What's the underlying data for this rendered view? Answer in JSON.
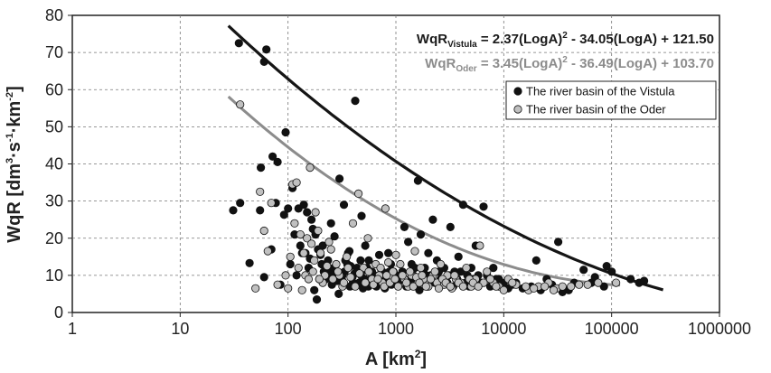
{
  "chart_data": {
    "type": "scatter",
    "xscale": "log",
    "xlim": [
      1,
      1000000
    ],
    "ylim": [
      0,
      80
    ],
    "grid": true,
    "legend_position": "top-right",
    "xlabel": {
      "text": "A [km",
      "sup": "2",
      "close": "]"
    },
    "ylabel": {
      "text": "WqR [dm",
      "sup1": "3",
      "mid1": "·s",
      "sup2": "-1",
      "mid2": "·km",
      "sup3": "-2",
      "close": "]"
    },
    "x_ticks": [
      1,
      10,
      100,
      1000,
      10000,
      100000,
      1000000
    ],
    "x_tick_labels": [
      "1",
      "10",
      "100",
      "1000",
      "10000",
      "100000",
      "1000000"
    ],
    "y_ticks": [
      0,
      10,
      20,
      30,
      40,
      50,
      60,
      70,
      80
    ],
    "y_tick_labels": [
      "0",
      "10",
      "20",
      "30",
      "40",
      "50",
      "60",
      "70",
      "80"
    ],
    "equations": [
      {
        "prefix": "WqR",
        "sub": "Vistula",
        "body1": " = 2.37(LogA)",
        "sup": "2",
        "body2": " - 34.05(LogA) + 121.50",
        "color": "#1a1a1a"
      },
      {
        "prefix": "WqR",
        "sub": "Oder",
        "body1": " = 3.45(LogA)",
        "sup": "2",
        "body2": " - 36.49(LogA) + 103.70",
        "color": "#8c8c8c"
      }
    ],
    "series": [
      {
        "name": "The river basin of the Vistula",
        "marker_color": "#111111",
        "trend": {
          "a": 2.37,
          "b": -34.05,
          "c": 121.5,
          "x_range": [
            28,
            300000
          ],
          "color": "#151515"
        },
        "points": [
          [
            35,
            72.5
          ],
          [
            60,
            67.5
          ],
          [
            63,
            70.8
          ],
          [
            56,
            39
          ],
          [
            55,
            27.5
          ],
          [
            31,
            27.5
          ],
          [
            36,
            29.5
          ],
          [
            44,
            13.3
          ],
          [
            77,
            29.5
          ],
          [
            72,
            42
          ],
          [
            80,
            40.5
          ],
          [
            95,
            48.5
          ],
          [
            92,
            26.3
          ],
          [
            100,
            28
          ],
          [
            110,
            33.5
          ],
          [
            125,
            28
          ],
          [
            140,
            29
          ],
          [
            150,
            27
          ],
          [
            165,
            25
          ],
          [
            170,
            22.5
          ],
          [
            180,
            21
          ],
          [
            190,
            17
          ],
          [
            200,
            15.5
          ],
          [
            210,
            18
          ],
          [
            230,
            12
          ],
          [
            250,
            24
          ],
          [
            270,
            20.5
          ],
          [
            300,
            36
          ],
          [
            330,
            29
          ],
          [
            360,
            16
          ],
          [
            380,
            12.5
          ],
          [
            420,
            57
          ],
          [
            480,
            26
          ],
          [
            520,
            18
          ],
          [
            560,
            14
          ],
          [
            600,
            10
          ],
          [
            650,
            8
          ],
          [
            700,
            15.5
          ],
          [
            750,
            11
          ],
          [
            800,
            9
          ],
          [
            850,
            16
          ],
          [
            900,
            13
          ],
          [
            950,
            11
          ],
          [
            1000,
            10
          ],
          [
            1100,
            9
          ],
          [
            1200,
            23
          ],
          [
            1300,
            19
          ],
          [
            1400,
            13
          ],
          [
            1500,
            12
          ],
          [
            1600,
            35.5
          ],
          [
            1700,
            21
          ],
          [
            1800,
            11
          ],
          [
            1900,
            10
          ],
          [
            2000,
            16
          ],
          [
            2200,
            25
          ],
          [
            2400,
            14
          ],
          [
            2600,
            9
          ],
          [
            2800,
            12
          ],
          [
            3000,
            8
          ],
          [
            3200,
            23
          ],
          [
            3500,
            11
          ],
          [
            3800,
            15
          ],
          [
            4200,
            29
          ],
          [
            4600,
            10
          ],
          [
            5000,
            12
          ],
          [
            5500,
            18
          ],
          [
            6000,
            8
          ],
          [
            6500,
            28.5
          ],
          [
            7000,
            10
          ],
          [
            8000,
            12
          ],
          [
            9000,
            9
          ],
          [
            10000,
            8
          ],
          [
            12000,
            7.5
          ],
          [
            15000,
            6.5
          ],
          [
            20000,
            14
          ],
          [
            25000,
            9
          ],
          [
            32000,
            19
          ],
          [
            40000,
            6
          ],
          [
            55000,
            11.5
          ],
          [
            70000,
            9.5
          ],
          [
            90000,
            12.5
          ],
          [
            100000,
            11
          ],
          [
            150000,
            9
          ],
          [
            180000,
            8
          ],
          [
            200000,
            8.5
          ],
          [
            120,
            10
          ],
          [
            135,
            16
          ],
          [
            155,
            12
          ],
          [
            175,
            6
          ],
          [
            195,
            9
          ],
          [
            215,
            11
          ],
          [
            235,
            14
          ],
          [
            255,
            7.5
          ],
          [
            275,
            10
          ],
          [
            295,
            5
          ],
          [
            315,
            9
          ],
          [
            335,
            11
          ],
          [
            355,
            13
          ],
          [
            375,
            7
          ],
          [
            395,
            9.5
          ],
          [
            415,
            10.5
          ],
          [
            435,
            12
          ],
          [
            455,
            8
          ],
          [
            475,
            10
          ],
          [
            495,
            6.5
          ],
          [
            515,
            9
          ],
          [
            535,
            11.5
          ],
          [
            555,
            7
          ],
          [
            575,
            8.5
          ],
          [
            600,
            11
          ],
          [
            630,
            9
          ],
          [
            660,
            7
          ],
          [
            690,
            10
          ],
          [
            720,
            12
          ],
          [
            760,
            8
          ],
          [
            790,
            6.5
          ],
          [
            830,
            9.5
          ],
          [
            870,
            11
          ],
          [
            910,
            7.5
          ],
          [
            960,
            10
          ],
          [
            1050,
            8
          ],
          [
            1150,
            11
          ],
          [
            1250,
            7
          ],
          [
            1350,
            9
          ],
          [
            1450,
            10
          ],
          [
            1550,
            8
          ],
          [
            1650,
            6
          ],
          [
            1750,
            9
          ],
          [
            1850,
            12
          ],
          [
            1950,
            7
          ],
          [
            2100,
            10
          ],
          [
            2300,
            8
          ],
          [
            2500,
            11
          ],
          [
            2700,
            7.5
          ],
          [
            2900,
            9
          ],
          [
            3100,
            10
          ],
          [
            3400,
            7
          ],
          [
            3700,
            9
          ],
          [
            4000,
            11
          ],
          [
            4400,
            8
          ],
          [
            4800,
            7
          ],
          [
            5200,
            9
          ],
          [
            5800,
            10
          ],
          [
            6200,
            8
          ],
          [
            7500,
            7
          ],
          [
            8500,
            9
          ],
          [
            11000,
            6.5
          ],
          [
            13000,
            8
          ],
          [
            18000,
            7
          ],
          [
            22000,
            6
          ],
          [
            28000,
            7.5
          ],
          [
            35000,
            5.5
          ],
          [
            45000,
            8
          ],
          [
            65000,
            8
          ],
          [
            85000,
            7
          ],
          [
            60,
            9.5
          ],
          [
            70,
            17
          ],
          [
            85,
            7.5
          ],
          [
            105,
            13
          ],
          [
            115,
            21
          ],
          [
            130,
            18
          ],
          [
            145,
            16
          ],
          [
            160,
            14.5
          ],
          [
            185,
            3.5
          ],
          [
            205,
            13
          ],
          [
            225,
            9
          ],
          [
            245,
            10.5
          ],
          [
            265,
            12
          ],
          [
            285,
            8.5
          ],
          [
            320,
            10
          ],
          [
            340,
            14
          ],
          [
            370,
            16.5
          ],
          [
            400,
            8
          ],
          [
            440,
            11
          ],
          [
            470,
            14
          ],
          [
            500,
            9
          ],
          [
            540,
            12
          ],
          [
            580,
            7.5
          ],
          [
            620,
            9.5
          ]
        ]
      },
      {
        "name": "The river basin of the Oder",
        "marker_color": "#c0c0c0",
        "trend": {
          "a": 3.45,
          "b": -36.49,
          "c": 103.7,
          "x_range": [
            28,
            120000
          ],
          "color": "#8c8c8c"
        },
        "points": [
          [
            36,
            56
          ],
          [
            50,
            6.5
          ],
          [
            55,
            32.5
          ],
          [
            60,
            22
          ],
          [
            65,
            16.5
          ],
          [
            70,
            29.5
          ],
          [
            80,
            7.5
          ],
          [
            100,
            6.5
          ],
          [
            110,
            34.5
          ],
          [
            115,
            24
          ],
          [
            120,
            35
          ],
          [
            130,
            21
          ],
          [
            145,
            10
          ],
          [
            160,
            39
          ],
          [
            180,
            27
          ],
          [
            190,
            22
          ],
          [
            200,
            16
          ],
          [
            220,
            10
          ],
          [
            250,
            17
          ],
          [
            280,
            13
          ],
          [
            300,
            10
          ],
          [
            320,
            7
          ],
          [
            350,
            15
          ],
          [
            400,
            24
          ],
          [
            450,
            32
          ],
          [
            500,
            12
          ],
          [
            550,
            20
          ],
          [
            600,
            9
          ],
          [
            650,
            13
          ],
          [
            700,
            10
          ],
          [
            750,
            8
          ],
          [
            800,
            28
          ],
          [
            850,
            13.5
          ],
          [
            900,
            10
          ],
          [
            1000,
            15.5
          ],
          [
            1100,
            13
          ],
          [
            1200,
            9
          ],
          [
            1300,
            7
          ],
          [
            1400,
            10
          ],
          [
            1500,
            16.5
          ],
          [
            1600,
            8
          ],
          [
            1700,
            12
          ],
          [
            1800,
            9
          ],
          [
            2000,
            7
          ],
          [
            2200,
            10
          ],
          [
            2400,
            8
          ],
          [
            2600,
            13
          ],
          [
            2800,
            7.5
          ],
          [
            3000,
            10
          ],
          [
            3300,
            6.5
          ],
          [
            3600,
            9
          ],
          [
            4000,
            8
          ],
          [
            4500,
            12
          ],
          [
            5000,
            7
          ],
          [
            5500,
            9
          ],
          [
            6000,
            18
          ],
          [
            6500,
            8
          ],
          [
            7000,
            11
          ],
          [
            8000,
            8
          ],
          [
            9000,
            7
          ],
          [
            11000,
            9
          ],
          [
            13000,
            7.5
          ],
          [
            17000,
            6
          ],
          [
            21000,
            7
          ],
          [
            26000,
            8
          ],
          [
            31000,
            6.5
          ],
          [
            42000,
            7
          ],
          [
            60000,
            7.5
          ],
          [
            75000,
            8
          ],
          [
            110000,
            8
          ],
          [
            125,
            12
          ],
          [
            140,
            16
          ],
          [
            155,
            9
          ],
          [
            170,
            11
          ],
          [
            210,
            8
          ],
          [
            230,
            12.5
          ],
          [
            260,
            9
          ],
          [
            290,
            11
          ],
          [
            330,
            8
          ],
          [
            360,
            12
          ],
          [
            380,
            9.5
          ],
          [
            420,
            7
          ],
          [
            460,
            10.5
          ],
          [
            520,
            8
          ],
          [
            560,
            11
          ],
          [
            620,
            7.5
          ],
          [
            680,
            9
          ],
          [
            720,
            12
          ],
          [
            780,
            7
          ],
          [
            820,
            10
          ],
          [
            880,
            8
          ],
          [
            940,
            11
          ],
          [
            980,
            9
          ],
          [
            1050,
            7
          ],
          [
            1150,
            10
          ],
          [
            1250,
            8
          ],
          [
            1350,
            11
          ],
          [
            1450,
            7
          ],
          [
            1550,
            9.5
          ],
          [
            1650,
            8
          ],
          [
            1750,
            10
          ],
          [
            1900,
            7
          ],
          [
            2100,
            9
          ],
          [
            2300,
            11
          ],
          [
            2500,
            6.5
          ],
          [
            2700,
            9
          ],
          [
            2900,
            8
          ],
          [
            3200,
            7
          ],
          [
            3500,
            10
          ],
          [
            3800,
            8
          ],
          [
            4200,
            7
          ],
          [
            4800,
            9
          ],
          [
            5200,
            8
          ],
          [
            5800,
            7
          ],
          [
            7500,
            9
          ],
          [
            8500,
            7
          ],
          [
            10000,
            6
          ],
          [
            12000,
            8
          ],
          [
            16000,
            7
          ],
          [
            19000,
            6.5
          ],
          [
            24000,
            7
          ],
          [
            29000,
            6
          ],
          [
            35000,
            7
          ],
          [
            50000,
            7.5
          ],
          [
            95,
            10
          ],
          [
            105,
            15
          ],
          [
            135,
            6
          ],
          [
            150,
            20
          ],
          [
            165,
            18.5
          ],
          [
            175,
            14
          ],
          [
            195,
            9
          ],
          [
            240,
            19
          ]
        ]
      }
    ]
  }
}
